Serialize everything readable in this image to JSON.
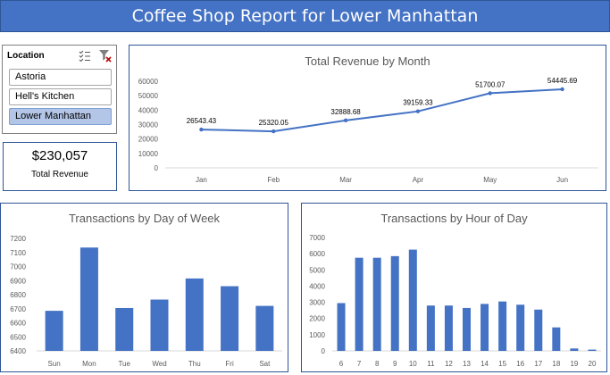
{
  "header": {
    "title": "Coffee Shop Report for Lower Manhattan"
  },
  "slicer": {
    "title": "Location",
    "items": [
      "Astoria",
      "Hell's Kitchen",
      "Lower Manhattan"
    ],
    "selected": "Lower Manhattan"
  },
  "kpi": {
    "value": "$230,057",
    "label": "Total Revenue"
  },
  "colors": {
    "accent": "#4472c4",
    "border": "#2f5597",
    "selected": "#b4c6e7"
  },
  "chart_data": [
    {
      "id": "revenue",
      "type": "line",
      "title": "Total Revenue by Month",
      "categories": [
        "Jan",
        "Feb",
        "Mar",
        "Apr",
        "May",
        "Jun"
      ],
      "values": [
        26543.43,
        25320.05,
        32888.68,
        39159.33,
        51700.07,
        54445.69
      ],
      "labels": [
        "26543.43",
        "25320.05",
        "32888.68",
        "39159.33",
        "51700.07",
        "54445.69"
      ],
      "ylim": [
        0,
        60000
      ],
      "yticks": [
        0,
        10000,
        20000,
        30000,
        40000,
        50000,
        60000
      ],
      "grid": false,
      "color": "#4472c4"
    },
    {
      "id": "dow",
      "type": "bar",
      "title": "Transactions by Day of Week",
      "categories": [
        "Sun",
        "Mon",
        "Tue",
        "Wed",
        "Thu",
        "Fri",
        "Sat"
      ],
      "values": [
        6685,
        7135,
        6705,
        6765,
        6915,
        6860,
        6720
      ],
      "ylim": [
        6400,
        7200
      ],
      "yticks": [
        6400,
        6500,
        6600,
        6700,
        6800,
        6900,
        7000,
        7100,
        7200
      ],
      "grid": false,
      "color": "#4472c4"
    },
    {
      "id": "hour",
      "type": "bar",
      "title": "Transactions by Hour of Day",
      "categories": [
        "6",
        "7",
        "8",
        "9",
        "10",
        "11",
        "12",
        "13",
        "14",
        "15",
        "16",
        "17",
        "18",
        "19",
        "20"
      ],
      "values": [
        2950,
        5750,
        5750,
        5850,
        6250,
        2800,
        2800,
        2650,
        2900,
        3050,
        2850,
        2550,
        1450,
        150,
        80
      ],
      "ylim": [
        0,
        7000
      ],
      "yticks": [
        0,
        1000,
        2000,
        3000,
        4000,
        5000,
        6000,
        7000
      ],
      "grid": false,
      "color": "#4472c4"
    }
  ]
}
